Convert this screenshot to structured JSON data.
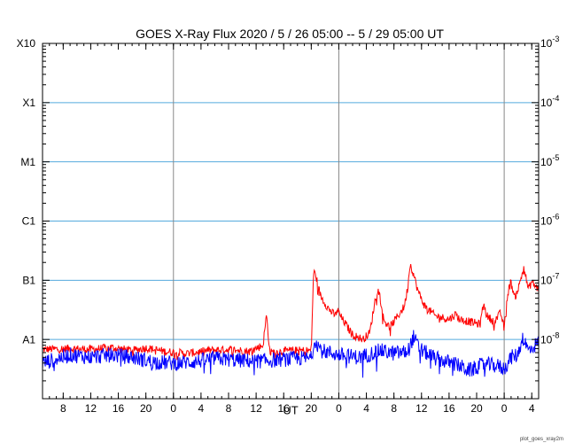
{
  "chart_data": {
    "type": "line",
    "title": "GOES X-Ray Flux   2020  /  5 / 26   05:00 --  5 / 29   05:00   UT",
    "xlabel": "UT",
    "ylabel": "",
    "y_scale": "log",
    "ylim": [
      1e-09,
      0.001
    ],
    "xlim": [
      "2020-05-26 05:00",
      "2020-05-29 05:00"
    ],
    "x_tick_labels": [
      "8",
      "12",
      "16",
      "20",
      "0",
      "4",
      "8",
      "12",
      "16",
      "20",
      "0",
      "4",
      "8",
      "12",
      "16",
      "20",
      "0",
      "4"
    ],
    "x_ticks": [
      "2020-05-26 08:00",
      "2020-05-26 12:00",
      "2020-05-26 16:00",
      "2020-05-26 20:00",
      "2020-05-27 00:00",
      "2020-05-27 04:00",
      "2020-05-27 08:00",
      "2020-05-27 12:00",
      "2020-05-27 16:00",
      "2020-05-27 20:00",
      "2020-05-28 00:00",
      "2020-05-28 04:00",
      "2020-05-28 08:00",
      "2020-05-28 12:00",
      "2020-05-28 16:00",
      "2020-05-28 20:00",
      "2020-05-29 00:00",
      "2020-05-29 04:00"
    ],
    "day_boundaries": [
      "2020-05-27 00:00",
      "2020-05-28 00:00",
      "2020-05-29 00:00"
    ],
    "y_left_labels": [
      "X10",
      "X1",
      "M1",
      "C1",
      "B1",
      "A1"
    ],
    "y_left_values": [
      0.001,
      0.0001,
      1e-05,
      1e-06,
      1e-07,
      1e-08
    ],
    "y_right_labels": [
      "10^-3",
      "10^-4",
      "10^-5",
      "10^-6",
      "10^-7",
      "10^-8"
    ],
    "y_right_values": [
      0.001,
      0.0001,
      1e-05,
      1e-06,
      1e-07,
      1e-08
    ],
    "grid": "horizontal lines at class boundaries, vertical lines at day boundaries",
    "series": [
      {
        "color": "#ff0000",
        "x": [
          "2020-05-26 05:00",
          "2020-05-26 09:00",
          "2020-05-26 12:00",
          "2020-05-26 15:00",
          "2020-05-26 18:00",
          "2020-05-26 20:00",
          "2020-05-26 23:00",
          "2020-05-27 02:00",
          "2020-05-27 05:00",
          "2020-05-27 08:00",
          "2020-05-27 11:00",
          "2020-05-27 13:00",
          "2020-05-27 13:30",
          "2020-05-27 14:00",
          "2020-05-27 17:00",
          "2020-05-27 20:00",
          "2020-05-27 20:20",
          "2020-05-27 20:40",
          "2020-05-27 21:20",
          "2020-05-27 22:30",
          "2020-05-27 23:30",
          "2020-05-27 23:45",
          "2020-05-28 00:30",
          "2020-05-28 02:00",
          "2020-05-28 03:30",
          "2020-05-28 04:30",
          "2020-05-28 05:15",
          "2020-05-28 05:40",
          "2020-05-28 06:00",
          "2020-05-28 06:30",
          "2020-05-28 07:20",
          "2020-05-28 08:00",
          "2020-05-28 09:30",
          "2020-05-28 10:00",
          "2020-05-28 10:20",
          "2020-05-28 10:40",
          "2020-05-28 11:30",
          "2020-05-28 12:30",
          "2020-05-28 14:00",
          "2020-05-28 16:00",
          "2020-05-28 17:00",
          "2020-05-28 17:30",
          "2020-05-28 19:00",
          "2020-05-28 20:30",
          "2020-05-28 21:00",
          "2020-05-28 21:30",
          "2020-05-28 22:30",
          "2020-05-28 23:30",
          "2020-05-29 00:00",
          "2020-05-29 00:30",
          "2020-05-29 01:00",
          "2020-05-29 01:30",
          "2020-05-29 02:10",
          "2020-05-29 02:50",
          "2020-05-29 03:30",
          "2020-05-29 04:00",
          "2020-05-29 04:30",
          "2020-05-29 05:00"
        ],
        "y": [
          6.8e-09,
          7e-09,
          6.8e-09,
          7.3e-09,
          6.5e-09,
          7.2e-09,
          6.2e-09,
          5.8e-09,
          6.5e-09,
          6.8e-09,
          6.3e-09,
          8e-09,
          2.6e-08,
          6e-09,
          6.5e-09,
          6.5e-09,
          1.4e-07,
          1.2e-07,
          5.5e-08,
          3.3e-08,
          2.5e-08,
          3.2e-08,
          2.2e-08,
          1.2e-08,
          1e-08,
          1.3e-08,
          4.5e-08,
          7e-08,
          5.2e-08,
          2.2e-08,
          1.6e-08,
          2e-08,
          3.6e-08,
          7.5e-08,
          1.9e-07,
          1.5e-07,
          6.5e-08,
          3.6e-08,
          2.5e-08,
          2.2e-08,
          2.7e-08,
          2.2e-08,
          2e-08,
          1.8e-08,
          4e-08,
          2.5e-08,
          2e-08,
          2.8e-08,
          1.5e-08,
          6e-08,
          9.5e-08,
          5e-08,
          8e-08,
          1.7e-07,
          7e-08,
          9.5e-08,
          8e-08,
          7e-08
        ]
      },
      {
        "color": "#0000ff",
        "x": [
          "2020-05-26 05:00",
          "2020-05-26 09:00",
          "2020-05-26 12:00",
          "2020-05-26 15:00",
          "2020-05-26 18:00",
          "2020-05-26 21:00",
          "2020-05-27 00:00",
          "2020-05-27 03:00",
          "2020-05-27 06:00",
          "2020-05-27 09:00",
          "2020-05-27 12:00",
          "2020-05-27 15:00",
          "2020-05-27 18:00",
          "2020-05-27 20:00",
          "2020-05-27 20:30",
          "2020-05-27 21:30",
          "2020-05-28 00:00",
          "2020-05-28 03:00",
          "2020-05-28 06:00",
          "2020-05-28 08:00",
          "2020-05-28 10:00",
          "2020-05-28 10:50",
          "2020-05-28 11:40",
          "2020-05-28 14:00",
          "2020-05-28 17:00",
          "2020-05-28 19:00",
          "2020-05-28 21:00",
          "2020-05-28 23:00",
          "2020-05-29 00:00",
          "2020-05-29 01:00",
          "2020-05-29 02:00",
          "2020-05-29 02:40",
          "2020-05-29 03:30",
          "2020-05-29 05:00"
        ],
        "y": [
          4e-09,
          5.5e-09,
          5e-09,
          5.5e-09,
          5e-09,
          4.2e-09,
          4e-09,
          4.2e-09,
          4.8e-09,
          4.5e-09,
          4.3e-09,
          4.5e-09,
          4.8e-09,
          4.8e-09,
          1e-08,
          6.5e-09,
          5.5e-09,
          5e-09,
          6.5e-09,
          5.8e-09,
          6.2e-09,
          1.1e-08,
          7e-09,
          4.8e-09,
          3.8e-09,
          3e-09,
          3.8e-09,
          3.6e-09,
          3.2e-09,
          5e-09,
          5.5e-09,
          1.1e-08,
          6.5e-09,
          9e-09
        ]
      }
    ]
  },
  "footer": "plot_goes_xray2m"
}
